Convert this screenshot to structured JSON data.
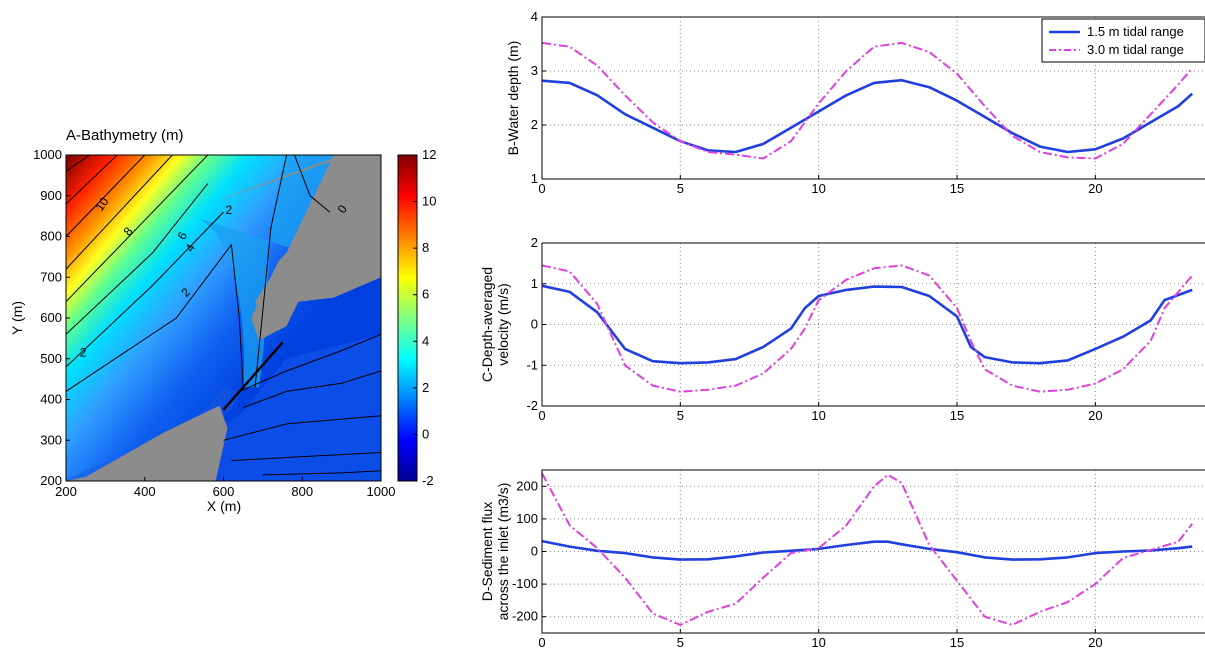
{
  "chart_data": [
    {
      "type": "heatmap",
      "title": "A-Bathymetry (m)",
      "xlabel": "X (m)",
      "ylabel": "Y (m)",
      "xlim": [
        200,
        1000
      ],
      "ylim": [
        200,
        1000
      ],
      "xticks": [
        200,
        400,
        600,
        800,
        1000
      ],
      "yticks": [
        200,
        300,
        400,
        500,
        600,
        700,
        800,
        900,
        1000
      ],
      "colorbar": {
        "min": -2,
        "max": 12,
        "ticks": [
          12,
          10,
          8,
          6,
          4,
          2,
          0,
          -2
        ]
      },
      "contour_labels": [
        "10",
        "8",
        "6",
        "4",
        "2",
        "2",
        "0",
        "2"
      ],
      "transect": {
        "from": [
          600,
          375
        ],
        "to": [
          750,
          540
        ]
      },
      "colormap": [
        "#00008f",
        "#0000ff",
        "#0080ff",
        "#00ffff",
        "#80ff80",
        "#ffff00",
        "#ff8000",
        "#ff0000",
        "#800000"
      ],
      "land_color": "#8c8c8c"
    },
    {
      "type": "line",
      "ylabel": "B-Water depth (m)",
      "xlim": [
        0,
        24
      ],
      "ylim": [
        1,
        4
      ],
      "xticks": [
        0,
        5,
        10,
        15,
        20
      ],
      "yticks": [
        1,
        2,
        3,
        4
      ],
      "grid": true,
      "legend": "top-right",
      "x": [
        0,
        1,
        2,
        3,
        4,
        5,
        6,
        7,
        8,
        9,
        10,
        11,
        12,
        13,
        14,
        15,
        16,
        17,
        18,
        19,
        20,
        21,
        22,
        23,
        23.5
      ],
      "series": [
        {
          "name": "1.5 m tidal range",
          "color": "#1f3fdf",
          "dash": "solid",
          "values": [
            2.82,
            2.78,
            2.55,
            2.2,
            1.95,
            1.7,
            1.53,
            1.5,
            1.65,
            1.95,
            2.25,
            2.55,
            2.78,
            2.83,
            2.7,
            2.45,
            2.15,
            1.85,
            1.6,
            1.5,
            1.55,
            1.75,
            2.05,
            2.35,
            2.58
          ]
        },
        {
          "name": "3.0 m tidal range",
          "color": "#e040e0",
          "dash": "dashdot",
          "values": [
            3.52,
            3.45,
            3.1,
            2.55,
            2.05,
            1.7,
            1.5,
            1.45,
            1.38,
            1.7,
            2.4,
            3.0,
            3.45,
            3.52,
            3.35,
            2.95,
            2.35,
            1.8,
            1.5,
            1.4,
            1.38,
            1.65,
            2.2,
            2.75,
            3.05
          ]
        }
      ]
    },
    {
      "type": "line",
      "ylabel": "C-Depth-averaged velocity (m/s)",
      "xlim": [
        0,
        24
      ],
      "ylim": [
        -2,
        2
      ],
      "xticks": [
        0,
        5,
        10,
        15,
        20
      ],
      "yticks": [
        -2,
        -1,
        0,
        1,
        2
      ],
      "grid": true,
      "x": [
        0,
        1,
        2,
        3,
        4,
        5,
        6,
        7,
        8,
        9,
        9.5,
        10,
        11,
        12,
        13,
        14,
        15,
        15.5,
        16,
        17,
        18,
        19,
        20,
        21,
        22,
        22.5,
        23.5
      ],
      "series": [
        {
          "name": "1.5 m tidal range",
          "color": "#1f3fdf",
          "dash": "solid",
          "values": [
            0.95,
            0.8,
            0.3,
            -0.6,
            -0.9,
            -0.95,
            -0.93,
            -0.85,
            -0.55,
            -0.1,
            0.4,
            0.7,
            0.85,
            0.93,
            0.92,
            0.7,
            0.2,
            -0.55,
            -0.8,
            -0.93,
            -0.95,
            -0.88,
            -0.6,
            -0.3,
            0.1,
            0.6,
            0.85
          ]
        },
        {
          "name": "3.0 m tidal range",
          "color": "#e040e0",
          "dash": "dashdot",
          "values": [
            1.45,
            1.3,
            0.5,
            -1.0,
            -1.5,
            -1.65,
            -1.6,
            -1.5,
            -1.2,
            -0.6,
            -0.1,
            0.6,
            1.1,
            1.38,
            1.45,
            1.2,
            0.4,
            -0.4,
            -1.1,
            -1.5,
            -1.65,
            -1.6,
            -1.45,
            -1.1,
            -0.4,
            0.4,
            1.2
          ]
        }
      ]
    },
    {
      "type": "line",
      "ylabel": "D-Sediment flux across the inlet (m3/s)",
      "xlim": [
        0,
        24
      ],
      "ylim": [
        -250,
        250
      ],
      "xticks": [
        0,
        5,
        10,
        15,
        20
      ],
      "yticks": [
        -200,
        -100,
        0,
        100,
        200
      ],
      "grid": true,
      "x": [
        0,
        1,
        2,
        3,
        4,
        5,
        6,
        7,
        8,
        9,
        10,
        11,
        12,
        12.5,
        13,
        14,
        15,
        16,
        17,
        18,
        19,
        20,
        21,
        22,
        23,
        23.5
      ],
      "series": [
        {
          "name": "1.5 m tidal range",
          "color": "#1f3fdf",
          "dash": "solid",
          "values": [
            32,
            15,
            2,
            -5,
            -18,
            -25,
            -24,
            -15,
            -3,
            2,
            8,
            20,
            30,
            30,
            22,
            8,
            -2,
            -18,
            -25,
            -24,
            -18,
            -5,
            0,
            3,
            10,
            15
          ]
        },
        {
          "name": "3.0 m tidal range",
          "color": "#e040e0",
          "dash": "dashdot",
          "values": [
            240,
            80,
            10,
            -80,
            -190,
            -225,
            -185,
            -160,
            -80,
            -5,
            10,
            80,
            200,
            235,
            210,
            20,
            -90,
            -200,
            -225,
            -185,
            -155,
            -100,
            -20,
            5,
            30,
            85
          ]
        }
      ]
    }
  ]
}
